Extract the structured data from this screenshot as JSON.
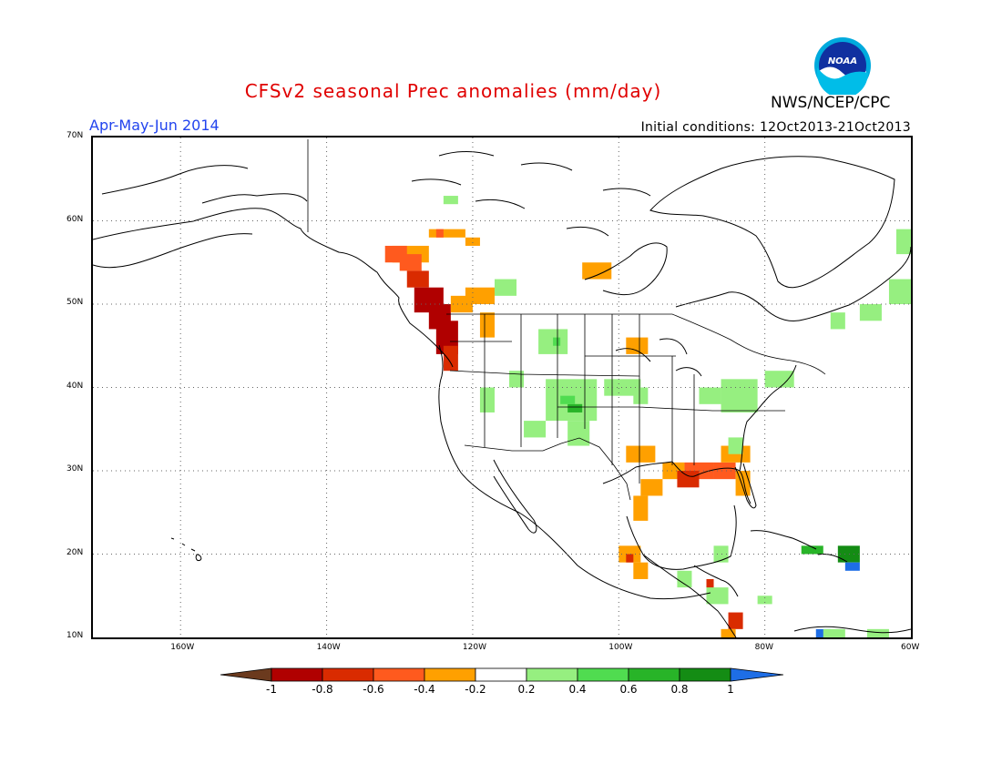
{
  "header": {
    "title": "CFSv2 seasonal Prec anomalies (mm/day)",
    "season": "Apr-May-Jun 2014",
    "initial_conditions": "Initial conditions: 12Oct2013-21Oct2013",
    "agency": "NWS/NCEP/CPC",
    "logo_text": "NOAA"
  },
  "map": {
    "projection": "lat-lon",
    "lon_range": [
      -172,
      -60
    ],
    "lat_range": [
      10,
      70
    ],
    "lat_ticks": [
      "70N",
      "60N",
      "50N",
      "40N",
      "30N",
      "20N",
      "10N"
    ],
    "lon_ticks": [
      "160W",
      "140W",
      "120W",
      "100W",
      "80W",
      "60W"
    ],
    "grid": "dotted"
  },
  "colorbar": {
    "labels": [
      "-1",
      "-0.8",
      "-0.6",
      "-0.4",
      "-0.2",
      "0.2",
      "0.4",
      "0.6",
      "0.8",
      "1"
    ],
    "colors": [
      "#6b3a1e",
      "#b00000",
      "#d92b00",
      "#ff5a1e",
      "#ffa000",
      "#ffffff",
      "#96ef80",
      "#50dc50",
      "#28b428",
      "#148c14",
      "#1e6ee6"
    ]
  },
  "anomaly_colors": {
    "dry_strong": "#b00000",
    "dry_med": "#d92b00",
    "dry_mod": "#ff5a1e",
    "dry_weak": "#ffa000",
    "wet_weak": "#96ef80",
    "wet_mod": "#50dc50",
    "wet_med": "#28b428",
    "wet_strong": "#148c14",
    "wet_extreme": "#1e6ee6"
  }
}
